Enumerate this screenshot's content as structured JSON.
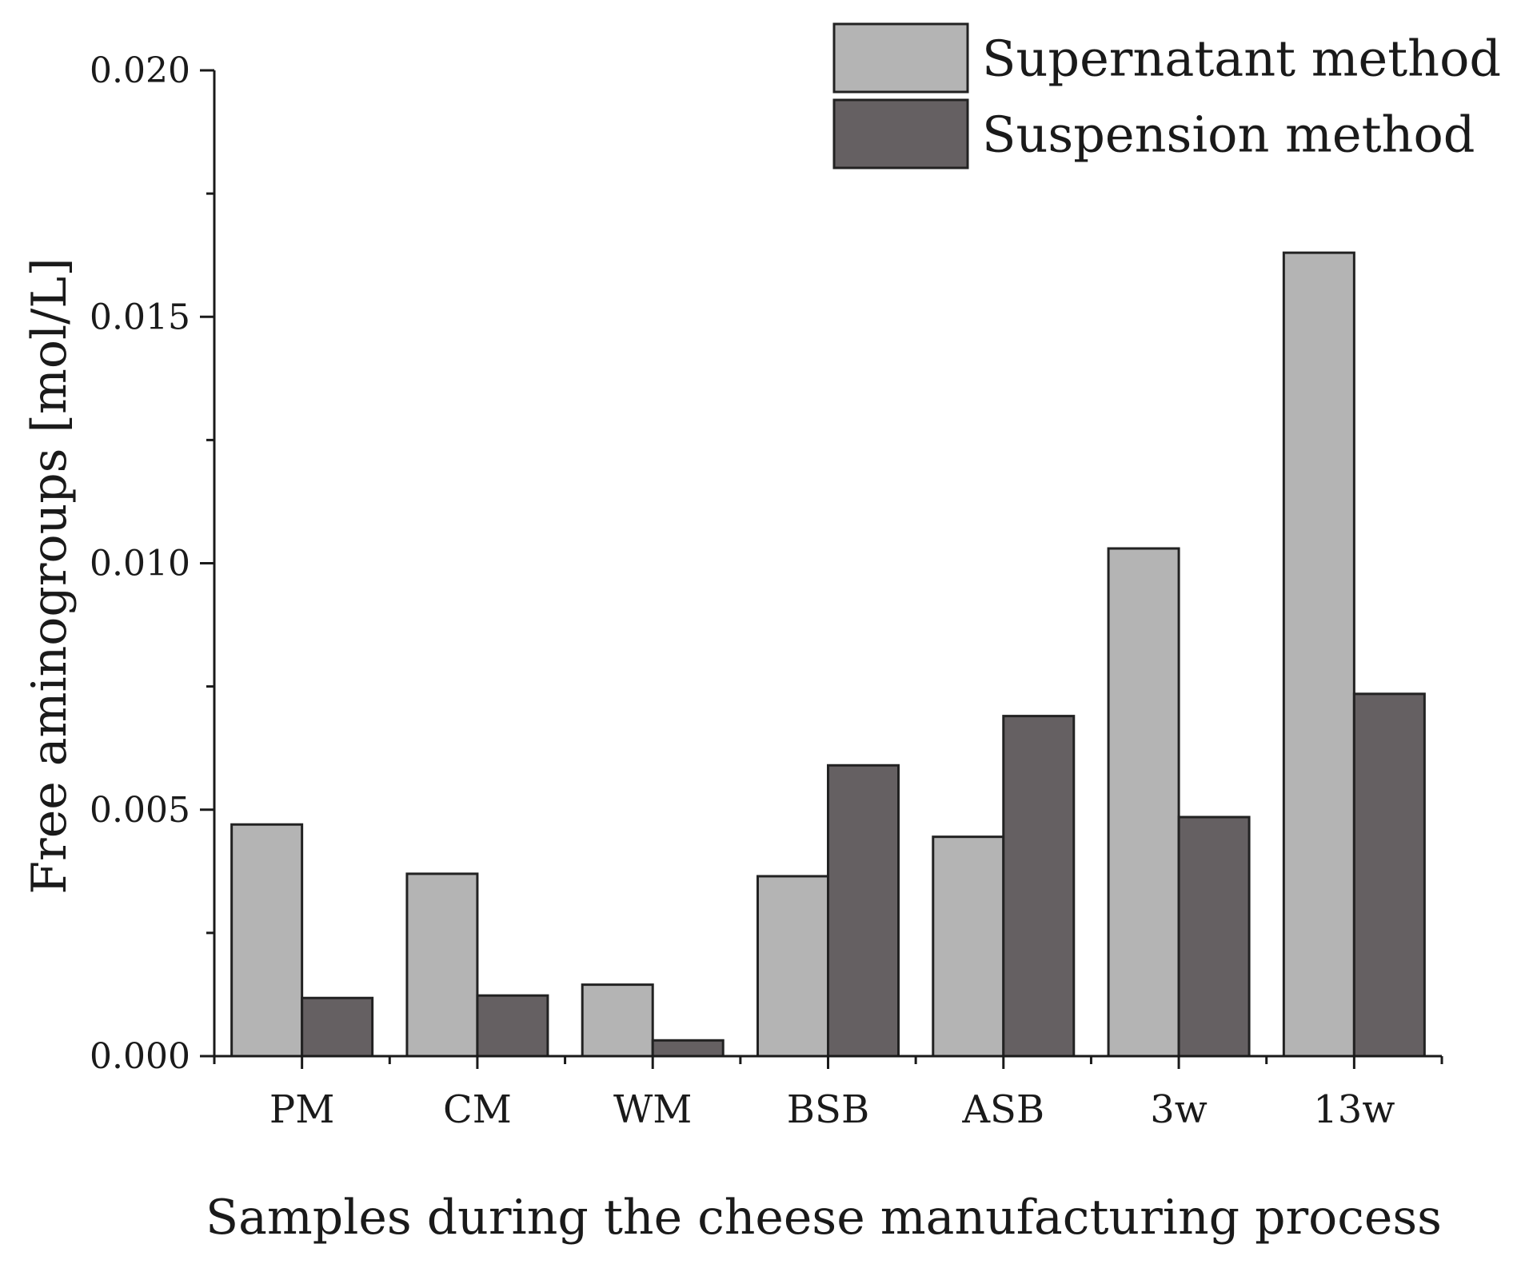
{
  "chart_data": {
    "type": "bar",
    "title": "",
    "xlabel": "Samples during the cheese manufacturing process",
    "ylabel": "Free aminogroups [mol/L]",
    "categories": [
      "PM",
      "CM",
      "WM",
      "BSB",
      "ASB",
      "3w",
      "13w"
    ],
    "series": [
      {
        "name": "Supernatant method",
        "color": "#b4b4b4",
        "values": [
          0.0047,
          0.0037,
          0.00145,
          0.00365,
          0.00445,
          0.0103,
          0.0163
        ]
      },
      {
        "name": "Suspension method",
        "color": "#656062",
        "values": [
          0.00118,
          0.00123,
          0.00032,
          0.0059,
          0.0069,
          0.00485,
          0.00735
        ]
      }
    ],
    "ylim": [
      0,
      0.02
    ],
    "yticks": [
      "0.000",
      "0.005",
      "0.010",
      "0.015",
      "0.020"
    ],
    "ytick_values": [
      0,
      0.005,
      0.01,
      0.015,
      0.02
    ],
    "legend_position": "top-right",
    "grid": false
  }
}
